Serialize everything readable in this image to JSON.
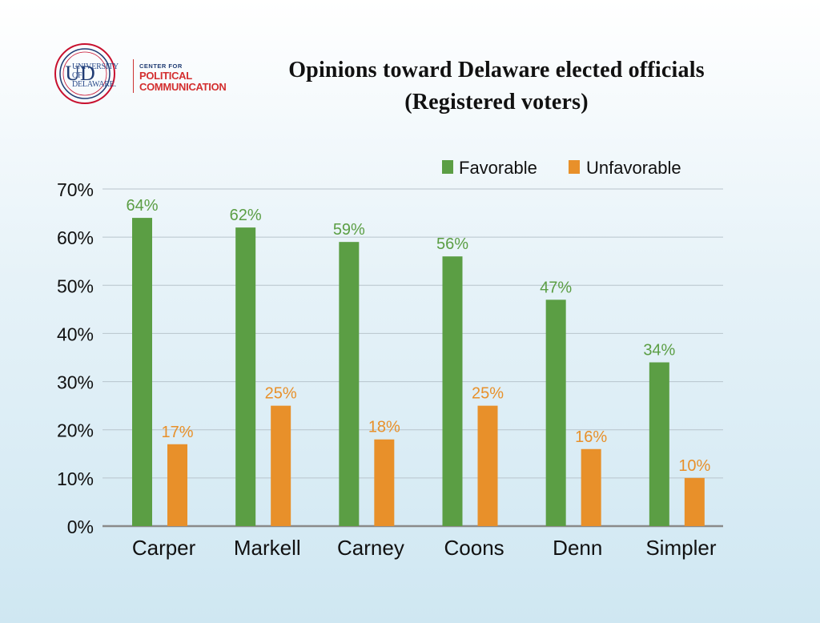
{
  "logo": {
    "university_line1": "UNIVERSITY OF",
    "university_line2": "DELAWARE.",
    "center_for": "CENTER FOR",
    "political": "POLITICAL",
    "communication": "COMMUNICATION"
  },
  "colors": {
    "favorable": "#5b9e44",
    "unfavorable": "#e8902a",
    "grid": "#b8c4cc",
    "axis": "#8a8a8a"
  },
  "chart_data": {
    "type": "bar",
    "title": "Opinions toward Delaware elected officials",
    "subtitle": "(Registered voters)",
    "categories": [
      "Carper",
      "Markell",
      "Carney",
      "Coons",
      "Denn",
      "Simpler"
    ],
    "series": [
      {
        "name": "Favorable",
        "values": [
          64,
          62,
          59,
          56,
          47,
          34
        ]
      },
      {
        "name": "Unfavorable",
        "values": [
          17,
          25,
          18,
          25,
          16,
          10
        ]
      }
    ],
    "data_labels": [
      [
        "64%",
        "62%",
        "59%",
        "56%",
        "47%",
        "34%"
      ],
      [
        "17%",
        "25%",
        "18%",
        "25%",
        "16%",
        "10%"
      ]
    ],
    "yticks": [
      "0%",
      "10%",
      "20%",
      "30%",
      "40%",
      "50%",
      "60%",
      "70%"
    ],
    "ylim": [
      0,
      70
    ],
    "grid": true,
    "legend": "top-right",
    "xlabel": "",
    "ylabel": ""
  }
}
